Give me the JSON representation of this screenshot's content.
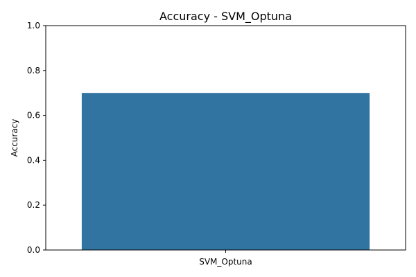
{
  "chart_data": {
    "type": "bar",
    "title": "Accuracy - SVM_Optuna",
    "xlabel": "",
    "ylabel": "Accuracy",
    "categories": [
      "SVM_Optuna"
    ],
    "values": [
      0.7
    ],
    "ylim": [
      0,
      1
    ],
    "yticks": [
      "0.0",
      "0.2",
      "0.4",
      "0.6",
      "0.8",
      "1.0"
    ],
    "grid": false,
    "legend": "none",
    "bar_color": "#3274a1"
  }
}
